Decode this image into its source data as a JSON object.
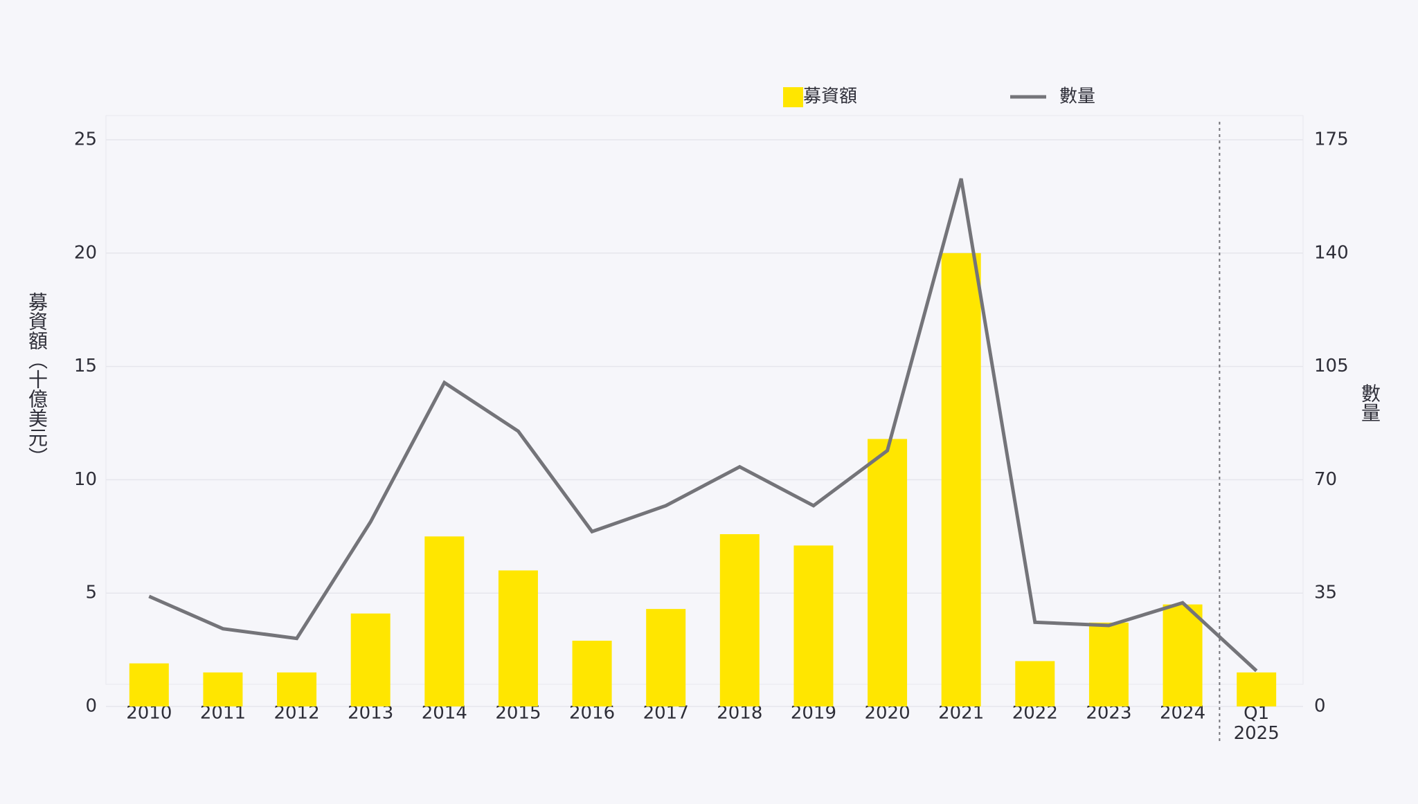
{
  "chart_data": {
    "type": "bar_line",
    "categories": [
      "2010",
      "2011",
      "2012",
      "2013",
      "2014",
      "2015",
      "2016",
      "2017",
      "2018",
      "2019",
      "2020",
      "2021",
      "2022",
      "2023",
      "2024",
      "Q1 2025"
    ],
    "y_label": "募資額（十億美元）",
    "y2_label": "數量",
    "series": [
      {
        "name": "募資額",
        "type": "bar",
        "color": "#ffe600",
        "values": [
          1.9,
          1.5,
          1.5,
          4.1,
          7.5,
          6.0,
          2.9,
          4.3,
          7.6,
          7.1,
          11.8,
          20.0,
          2.0,
          3.7,
          4.5,
          1.5
        ]
      },
      {
        "name": "數量",
        "type": "line",
        "axis": "y2",
        "color": "#747479",
        "values": [
          34,
          24,
          21,
          57,
          100,
          85,
          54,
          62,
          74,
          62,
          79,
          163,
          26,
          25,
          32,
          11
        ]
      }
    ],
    "ylim": [
      0,
      25
    ],
    "yticks": [
      0,
      5,
      10,
      15,
      20,
      25
    ],
    "y2lim": [
      0,
      175
    ],
    "y2ticks": [
      0,
      35,
      70,
      105,
      140,
      175
    ],
    "grid": true
  }
}
